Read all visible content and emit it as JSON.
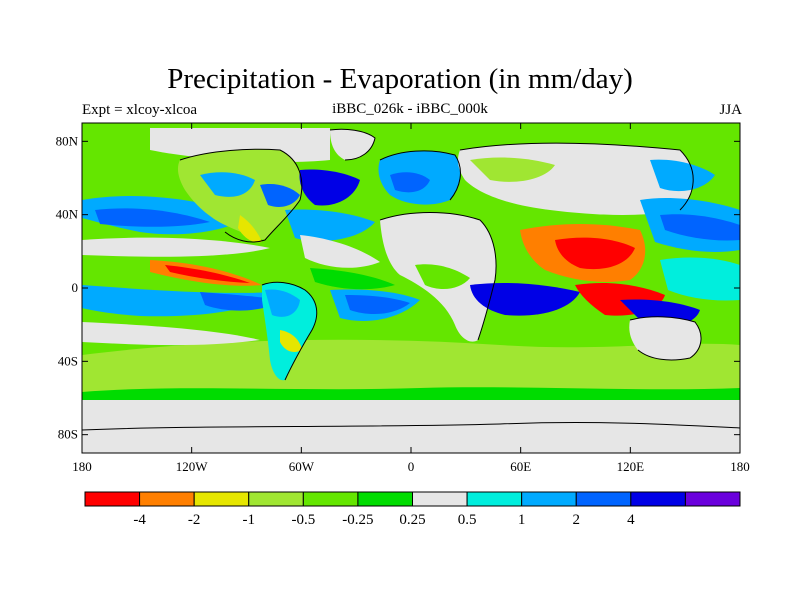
{
  "title": "Precipitation - Evaporation (in mm/day)",
  "left_subtitle": "Expt = xlcoy-xlcoa",
  "center_subtitle": "iBBC_026k - iBBC_000k",
  "right_subtitle": "JJA",
  "axes": {
    "lon_ticks": [
      {
        "value": -180,
        "label": "180"
      },
      {
        "value": -120,
        "label": "120W"
      },
      {
        "value": -60,
        "label": "60W"
      },
      {
        "value": 0,
        "label": "0"
      },
      {
        "value": 60,
        "label": "60E"
      },
      {
        "value": 120,
        "label": "120E"
      },
      {
        "value": 180,
        "label": "180"
      }
    ],
    "lat_ticks": [
      {
        "value": 80,
        "label": "80N"
      },
      {
        "value": 40,
        "label": "40N"
      },
      {
        "value": 0,
        "label": "0"
      },
      {
        "value": -40,
        "label": "40S"
      },
      {
        "value": -80,
        "label": "80S"
      }
    ],
    "lon_range": [
      -180,
      180
    ],
    "lat_range": [
      -90,
      90
    ]
  },
  "colorbar": {
    "colors": [
      "#ff0000",
      "#ff7f00",
      "#e6e600",
      "#a0e632",
      "#64e600",
      "#00dc00",
      "#e6e6e6",
      "#00eedd",
      "#00aaff",
      "#0064ff",
      "#0000e6",
      "#6a00dc"
    ],
    "labels": [
      "-4",
      "-2",
      "-1",
      "-0.5",
      "-0.25",
      "0.25",
      "0.5",
      "1",
      "2",
      "4"
    ]
  },
  "land_color": "#e6e6e6",
  "coast_color": "#000000"
}
